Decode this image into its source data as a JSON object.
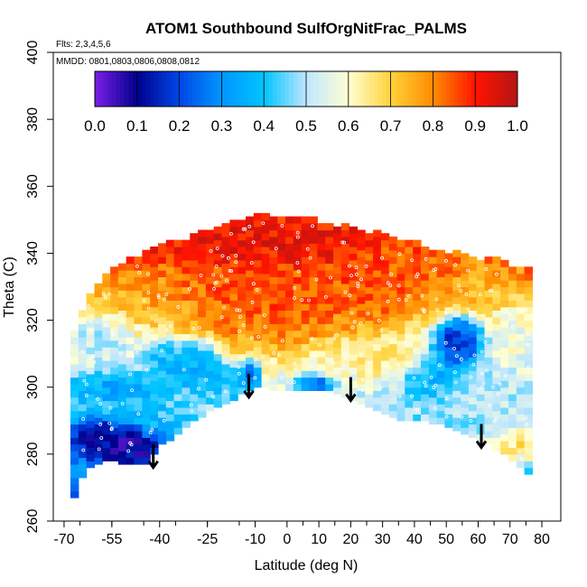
{
  "chart_data": {
    "type": "heatmap",
    "title": "ATOM1 Southbound SulfOrgNitFrac_PALMS",
    "flights_label": "Flts: 2,3,4,5,6",
    "dates_label": "MMDD: 0801,0803,0806,0808,0812",
    "xlabel": "Latitude (deg N)",
    "ylabel": "Theta (C)",
    "xlim": [
      -70,
      80
    ],
    "ylim": [
      260,
      400
    ],
    "x_ticks": [
      -70,
      -55,
      -40,
      -25,
      -10,
      0,
      10,
      20,
      30,
      40,
      50,
      60,
      70,
      80
    ],
    "y_ticks": [
      260,
      280,
      300,
      320,
      340,
      360,
      380,
      400
    ],
    "colorbar": {
      "ticks": [
        "0.0",
        "0.1",
        "0.2",
        "0.3",
        "0.4",
        "0.5",
        "0.6",
        "0.7",
        "0.8",
        "0.9",
        "1.0"
      ],
      "range": [
        0,
        1
      ],
      "colors": [
        "#7a1fe6",
        "#00008c",
        "#0046e6",
        "#0096ff",
        "#00c4ff",
        "#bfe6ff",
        "#ffffd2",
        "#ffd23c",
        "#ff8c00",
        "#ff1400",
        "#b41414"
      ]
    },
    "envelope": [
      {
        "lat": -68,
        "top": 313,
        "bottom": 265
      },
      {
        "lat": -63,
        "top": 325,
        "bottom": 276
      },
      {
        "lat": -58,
        "top": 332,
        "bottom": 278
      },
      {
        "lat": -52,
        "top": 336,
        "bottom": 278
      },
      {
        "lat": -45,
        "top": 340,
        "bottom": 277
      },
      {
        "lat": -40,
        "top": 343,
        "bottom": 283
      },
      {
        "lat": -35,
        "top": 343,
        "bottom": 286
      },
      {
        "lat": -30,
        "top": 344,
        "bottom": 290
      },
      {
        "lat": -25,
        "top": 346,
        "bottom": 293
      },
      {
        "lat": -20,
        "top": 348,
        "bottom": 295
      },
      {
        "lat": -15,
        "top": 349,
        "bottom": 298
      },
      {
        "lat": -10,
        "top": 350,
        "bottom": 300
      },
      {
        "lat": -5,
        "top": 351,
        "bottom": 300
      },
      {
        "lat": 0,
        "top": 350,
        "bottom": 299
      },
      {
        "lat": 5,
        "top": 350,
        "bottom": 300
      },
      {
        "lat": 10,
        "top": 349,
        "bottom": 299
      },
      {
        "lat": 15,
        "top": 348,
        "bottom": 299
      },
      {
        "lat": 20,
        "top": 347,
        "bottom": 297
      },
      {
        "lat": 25,
        "top": 346,
        "bottom": 295
      },
      {
        "lat": 30,
        "top": 345,
        "bottom": 293
      },
      {
        "lat": 35,
        "top": 344,
        "bottom": 291
      },
      {
        "lat": 40,
        "top": 343,
        "bottom": 290
      },
      {
        "lat": 45,
        "top": 341,
        "bottom": 290
      },
      {
        "lat": 50,
        "top": 340,
        "bottom": 289
      },
      {
        "lat": 55,
        "top": 339,
        "bottom": 287
      },
      {
        "lat": 60,
        "top": 338,
        "bottom": 285
      },
      {
        "lat": 65,
        "top": 338,
        "bottom": 282
      },
      {
        "lat": 70,
        "top": 336,
        "bottom": 279
      },
      {
        "lat": 74,
        "top": 336,
        "bottom": 276
      },
      {
        "lat": 78,
        "top": 335,
        "bottom": 273
      }
    ],
    "features": [
      {
        "lat": -50,
        "theta": 282,
        "value": 0.02,
        "r_lat": 9,
        "r_theta": 5
      },
      {
        "lat": -62,
        "theta": 284,
        "value": 0.08,
        "r_lat": 6,
        "r_theta": 5
      },
      {
        "lat": -55,
        "theta": 299,
        "value": 0.3,
        "r_lat": 12,
        "r_theta": 4
      },
      {
        "lat": -42,
        "theta": 290,
        "value": 0.4,
        "r_lat": 7,
        "r_theta": 6
      },
      {
        "lat": -40,
        "theta": 307,
        "value": 0.33,
        "r_lat": 5,
        "r_theta": 6
      },
      {
        "lat": -30,
        "theta": 305,
        "value": 0.32,
        "r_lat": 6,
        "r_theta": 6
      },
      {
        "lat": -58,
        "theta": 315,
        "value": 0.45,
        "r_lat": 9,
        "r_theta": 7
      },
      {
        "lat": -20,
        "theta": 300,
        "value": 0.38,
        "r_lat": 6,
        "r_theta": 4
      },
      {
        "lat": -13,
        "theta": 303,
        "value": 0.1,
        "r_lat": 2,
        "r_theta": 3
      },
      {
        "lat": 8,
        "theta": 300,
        "value": 0.2,
        "r_lat": 4,
        "r_theta": 2
      },
      {
        "lat": 45,
        "theta": 302,
        "value": 0.3,
        "r_lat": 8,
        "r_theta": 5
      },
      {
        "lat": 53,
        "theta": 312,
        "value": 0.05,
        "r_lat": 6,
        "r_theta": 6
      },
      {
        "lat": 62,
        "theta": 296,
        "value": 0.5,
        "r_lat": 14,
        "r_theta": 9
      },
      {
        "lat": 70,
        "theta": 315,
        "value": 0.55,
        "r_lat": 8,
        "r_theta": 8
      },
      {
        "lat": 70,
        "theta": 282,
        "value": 0.72,
        "r_lat": 7,
        "r_theta": 5
      },
      {
        "lat": 15,
        "theta": 308,
        "value": 0.62,
        "r_lat": 8,
        "r_theta": 4
      },
      {
        "lat": 30,
        "theta": 308,
        "value": 0.65,
        "r_lat": 9,
        "r_theta": 5
      },
      {
        "lat": -5,
        "theta": 325,
        "value": 0.86,
        "r_lat": 20,
        "r_theta": 10
      },
      {
        "lat": 25,
        "theta": 328,
        "value": 0.88,
        "r_lat": 8,
        "r_theta": 5
      },
      {
        "lat": -5,
        "theta": 342,
        "value": 0.93,
        "r_lat": 28,
        "r_theta": 5
      },
      {
        "lat": 40,
        "theta": 336,
        "value": 0.83,
        "r_lat": 18,
        "r_theta": 5
      },
      {
        "lat": -50,
        "theta": 325,
        "value": 0.76,
        "r_lat": 12,
        "r_theta": 8
      },
      {
        "lat": 60,
        "theta": 330,
        "value": 0.72,
        "r_lat": 10,
        "r_theta": 6
      }
    ],
    "arrows": [
      {
        "lat": -42,
        "theta_top": 283,
        "theta_tip": 276
      },
      {
        "lat": -12,
        "theta_top": 304,
        "theta_tip": 297
      },
      {
        "lat": 20,
        "theta_top": 303,
        "theta_tip": 296
      },
      {
        "lat": 61,
        "theta_top": 289,
        "theta_tip": 282
      }
    ]
  }
}
